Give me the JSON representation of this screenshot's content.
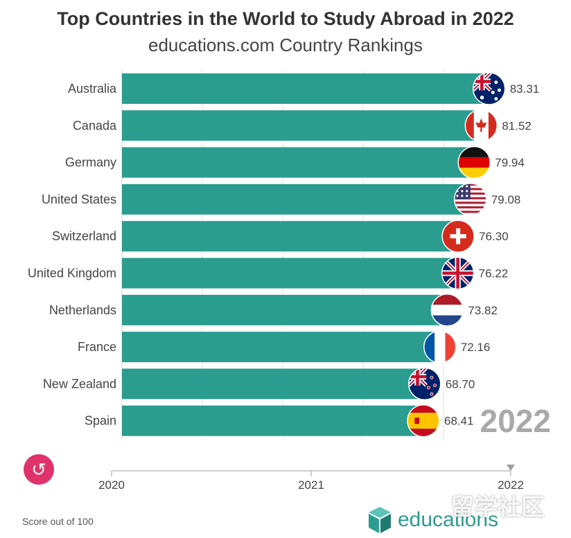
{
  "header": {
    "title": "Top Countries in the World to Study Abroad in 2022",
    "subtitle": "educations.com Country Rankings"
  },
  "chart_data": {
    "type": "bar",
    "orientation": "horizontal",
    "categories": [
      "Australia",
      "Canada",
      "Germany",
      "United States",
      "Switzerland",
      "United Kingdom",
      "Netherlands",
      "France",
      "New Zealand",
      "Spain"
    ],
    "values": [
      83.31,
      81.52,
      79.94,
      79.08,
      76.3,
      76.22,
      73.82,
      72.16,
      68.7,
      68.41
    ],
    "value_labels": [
      "83.31",
      "81.52",
      "79.94",
      "79.08",
      "76.30",
      "76.22",
      "73.82",
      "72.16",
      "68.70",
      "68.41"
    ],
    "flags": [
      "australia-flag",
      "canada-flag",
      "germany-flag",
      "united-states-flag",
      "switzerland-flag",
      "united-kingdom-flag",
      "netherlands-flag",
      "france-flag",
      "new-zealand-flag",
      "spain-flag"
    ],
    "current_year": "2022",
    "timeline_ticks": [
      "2020",
      "2021",
      "2022"
    ],
    "bar_color": "#2a9d8f",
    "grid": true
  },
  "controls": {
    "replay_icon": "replay-icon"
  },
  "footer": {
    "note": "Score out of 100",
    "logo_text": "educations",
    "watermark": "留学社区"
  }
}
